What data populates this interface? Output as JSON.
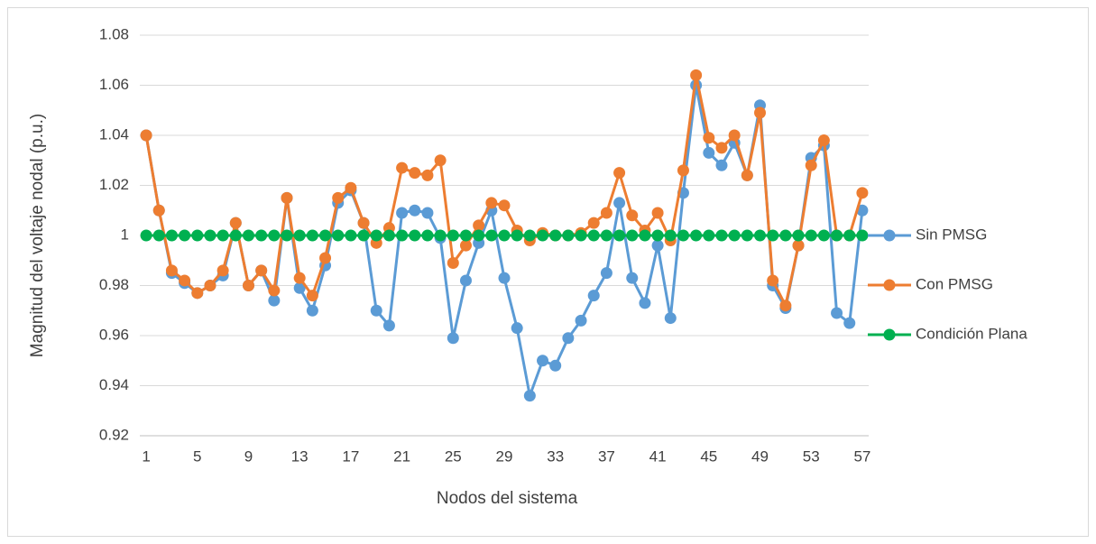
{
  "chart_data": {
    "type": "line",
    "xlabel": "Nodos del sistema",
    "ylabel": "Magnitud del voltaje nodal (p.u.)",
    "categories": [
      1,
      null,
      null,
      null,
      5,
      null,
      null,
      null,
      9,
      null,
      null,
      null,
      13,
      null,
      null,
      null,
      17,
      null,
      null,
      null,
      21,
      null,
      null,
      null,
      25,
      null,
      null,
      null,
      29,
      null,
      null,
      null,
      33,
      null,
      null,
      null,
      37,
      null,
      null,
      null,
      41,
      null,
      null,
      null,
      45,
      null,
      null,
      null,
      49,
      null,
      null,
      null,
      53,
      null,
      null,
      null,
      57
    ],
    "series": [
      {
        "name": "Sin PMSG",
        "color": "#5b9bd5",
        "values": [
          1.04,
          1.01,
          0.985,
          0.981,
          0.977,
          0.98,
          0.984,
          1.005,
          0.98,
          0.986,
          0.974,
          1.015,
          0.979,
          0.97,
          0.988,
          1.013,
          1.018,
          1.005,
          0.97,
          0.964,
          1.009,
          1.01,
          1.009,
          0.999,
          0.959,
          0.982,
          0.997,
          1.01,
          0.983,
          0.963,
          0.936,
          0.95,
          0.948,
          0.959,
          0.966,
          0.976,
          0.985,
          1.013,
          0.983,
          0.973,
          0.996,
          0.967,
          1.017,
          1.06,
          1.033,
          1.028,
          1.037,
          1.024,
          1.052,
          0.98,
          0.971,
          0.996,
          1.031,
          1.036,
          0.969,
          0.965,
          1.01
        ]
      },
      {
        "name": "Con PMSG",
        "color": "#ed7d31",
        "values": [
          1.04,
          1.01,
          0.986,
          0.982,
          0.977,
          0.98,
          0.986,
          1.005,
          0.98,
          0.986,
          0.978,
          1.015,
          0.983,
          0.976,
          0.991,
          1.015,
          1.019,
          1.005,
          0.997,
          1.003,
          1.027,
          1.025,
          1.024,
          1.03,
          0.989,
          0.996,
          1.004,
          1.013,
          1.012,
          1.002,
          0.998,
          1.001,
          1,
          1,
          1.001,
          1.005,
          1.009,
          1.025,
          1.008,
          1.002,
          1.009,
          0.998,
          1.026,
          1.064,
          1.039,
          1.035,
          1.04,
          1.024,
          1.049,
          0.982,
          0.972,
          0.996,
          1.028,
          1.038,
          1,
          1,
          1.017
        ]
      },
      {
        "name": "Condición Plana",
        "color": "#00b050",
        "values": [
          1,
          1,
          1,
          1,
          1,
          1,
          1,
          1,
          1,
          1,
          1,
          1,
          1,
          1,
          1,
          1,
          1,
          1,
          1,
          1,
          1,
          1,
          1,
          1,
          1,
          1,
          1,
          1,
          1,
          1,
          1,
          1,
          1,
          1,
          1,
          1,
          1,
          1,
          1,
          1,
          1,
          1,
          1,
          1,
          1,
          1,
          1,
          1,
          1,
          1,
          1,
          1,
          1,
          1,
          1,
          1,
          1
        ]
      }
    ],
    "ylim": [
      0.92,
      1.08
    ],
    "yticks": [
      0.92,
      0.94,
      0.96,
      0.98,
      1,
      1.02,
      1.04,
      1.06,
      1.08
    ],
    "grid": true,
    "legend": "right"
  }
}
